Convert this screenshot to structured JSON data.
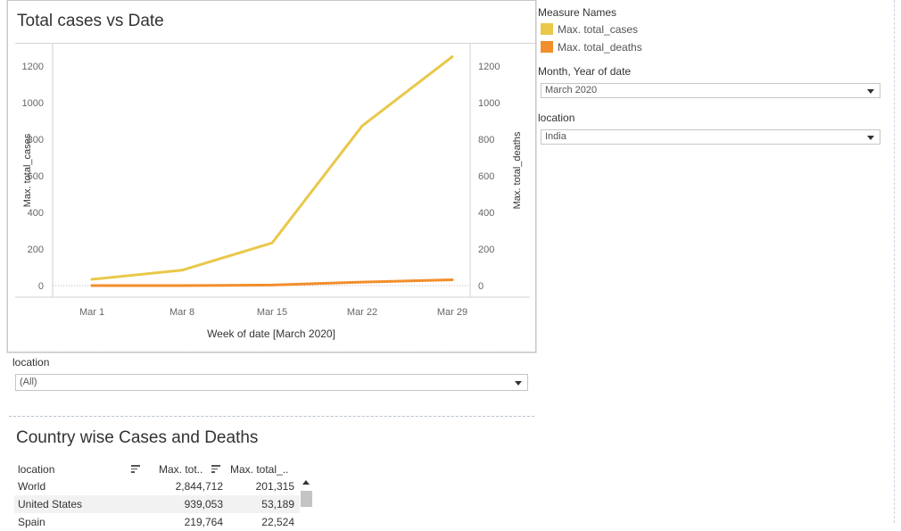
{
  "chart_title": "Total cases vs Date",
  "chart_data": {
    "type": "line",
    "x_categories": [
      "Mar 1",
      "Mar 8",
      "Mar 15",
      "Mar 22",
      "Mar 29"
    ],
    "xlabel": "Week of date [March 2020]",
    "ylabel_left": "Max. total_cases",
    "ylabel_right": "Max. total_deaths",
    "yticks": [
      "1200",
      "1000",
      "800",
      "600",
      "400",
      "200",
      "0"
    ],
    "ylim": [
      0,
      1300
    ],
    "series": [
      {
        "name": "Max. total_cases",
        "color": "#e9c84a",
        "values": [
          34,
          84,
          233,
          873,
          1251
        ]
      },
      {
        "name": "Max. total_deaths",
        "color": "#f28e2b",
        "values": [
          0,
          0,
          3,
          19,
          32
        ]
      }
    ]
  },
  "legend": {
    "title": "Measure Names",
    "items": [
      {
        "label": "Max. total_cases",
        "color": "#e9c84a"
      },
      {
        "label": "Max. total_deaths",
        "color": "#f28e2b"
      }
    ]
  },
  "filters": {
    "month_label": "Month, Year of date",
    "month_value": "March 2020",
    "location_label": "location",
    "location_value": "India",
    "location2_label": "location",
    "location2_value": "(All)"
  },
  "table": {
    "title": "Country wise Cases and Deaths",
    "headers": [
      "location",
      "Max. tot..",
      "Max. total_.."
    ],
    "rows": [
      [
        "World",
        "2,844,712",
        "201,315"
      ],
      [
        "United States",
        "939,053",
        "53,189"
      ],
      [
        "Spain",
        "219,764",
        "22,524"
      ]
    ]
  }
}
